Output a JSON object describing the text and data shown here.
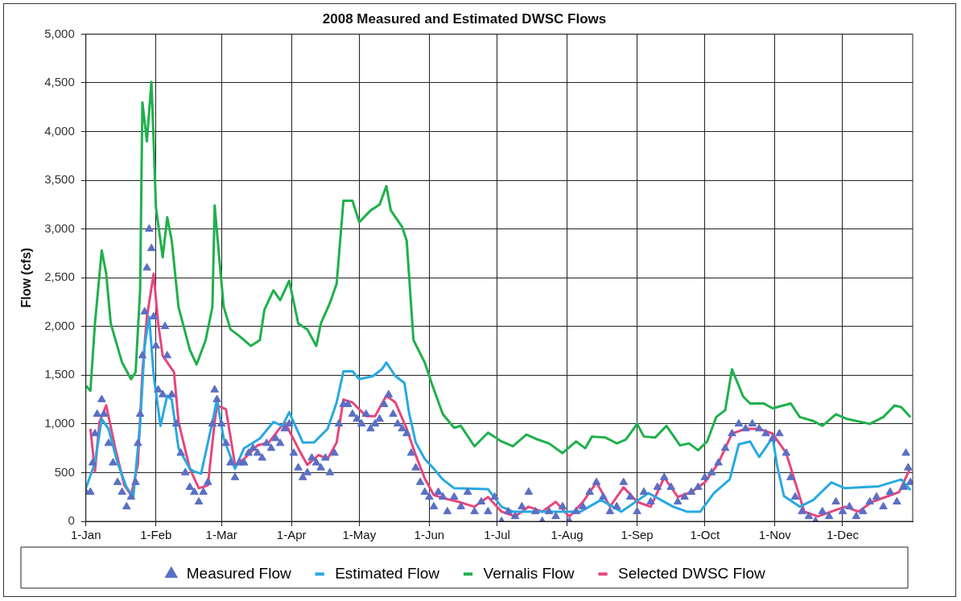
{
  "chart_data": {
    "type": "line",
    "title": "2008 Measured and Estimated DWSC Flows",
    "ylabel": "Flow (cfs)",
    "xlim": [
      "2008-01-01",
      "2009-01-01"
    ],
    "xticks": [
      {
        "value": "2008-01-01",
        "label": "1-Jan"
      },
      {
        "value": "2008-02-01",
        "label": "1-Feb"
      },
      {
        "value": "2008-03-01",
        "label": "1-Mar"
      },
      {
        "value": "2008-04-01",
        "label": "1-Apr"
      },
      {
        "value": "2008-05-01",
        "label": "1-May"
      },
      {
        "value": "2008-06-01",
        "label": "1-Jun"
      },
      {
        "value": "2008-07-01",
        "label": "1-Jul"
      },
      {
        "value": "2008-08-01",
        "label": "1-Aug"
      },
      {
        "value": "2008-09-01",
        "label": "1-Sep"
      },
      {
        "value": "2008-10-01",
        "label": "1-Oct"
      },
      {
        "value": "2008-11-01",
        "label": "1-Nov"
      },
      {
        "value": "2008-12-01",
        "label": "1-Dec"
      }
    ],
    "ylim": [
      0,
      5000
    ],
    "yticks": [
      0,
      500,
      {
        "value": 1000,
        "label": "1,000"
      },
      {
        "value": 1500,
        "label": "1,500"
      },
      {
        "value": 2000,
        "label": "2,000"
      },
      {
        "value": 2500,
        "label": "2,500"
      },
      {
        "value": 3000,
        "label": "3,000"
      },
      {
        "value": 3500,
        "label": "3,500"
      },
      {
        "value": 4000,
        "label": "4,000"
      },
      {
        "value": 4500,
        "label": "4,500"
      },
      {
        "value": 5000,
        "label": "5,000"
      }
    ],
    "grid": true,
    "legend": "bottom",
    "series": [
      {
        "name": "Measured Flow",
        "type": "scatter",
        "marker": "triangle",
        "color": "#5b6fc4",
        "x": [
          "2008-01-01",
          "2008-01-03",
          "2008-01-04",
          "2008-01-05",
          "2008-01-06",
          "2008-01-08",
          "2008-01-09",
          "2008-01-11",
          "2008-01-13",
          "2008-01-15",
          "2008-01-17",
          "2008-01-19",
          "2008-01-21",
          "2008-01-23",
          "2008-01-24",
          "2008-01-25",
          "2008-01-26",
          "2008-01-27",
          "2008-01-28",
          "2008-01-29",
          "2008-01-30",
          "2008-01-31",
          "2008-02-01",
          "2008-02-02",
          "2008-02-04",
          "2008-02-05",
          "2008-02-06",
          "2008-02-08",
          "2008-02-10",
          "2008-02-12",
          "2008-02-14",
          "2008-02-16",
          "2008-02-18",
          "2008-02-20",
          "2008-02-22",
          "2008-02-24",
          "2008-02-26",
          "2008-02-27",
          "2008-02-28",
          "2008-03-01",
          "2008-03-03",
          "2008-03-05",
          "2008-03-07",
          "2008-03-09",
          "2008-03-11",
          "2008-03-13",
          "2008-03-15",
          "2008-03-17",
          "2008-03-19",
          "2008-03-21",
          "2008-03-23",
          "2008-03-25",
          "2008-03-27",
          "2008-03-29",
          "2008-03-31",
          "2008-04-02",
          "2008-04-04",
          "2008-04-06",
          "2008-04-08",
          "2008-04-10",
          "2008-04-12",
          "2008-04-14",
          "2008-04-16",
          "2008-04-18",
          "2008-04-20",
          "2008-04-22",
          "2008-04-24",
          "2008-04-26",
          "2008-04-28",
          "2008-04-30",
          "2008-05-02",
          "2008-05-04",
          "2008-05-06",
          "2008-05-08",
          "2008-05-10",
          "2008-05-12",
          "2008-05-14",
          "2008-05-16",
          "2008-05-18",
          "2008-05-20",
          "2008-05-22",
          "2008-05-24",
          "2008-05-26",
          "2008-05-28",
          "2008-05-30",
          "2008-06-01",
          "2008-06-03",
          "2008-06-05",
          "2008-06-07",
          "2008-06-09",
          "2008-06-12",
          "2008-06-15",
          "2008-06-18",
          "2008-06-21",
          "2008-06-24",
          "2008-06-27",
          "2008-06-30",
          "2008-07-03",
          "2008-07-06",
          "2008-07-09",
          "2008-07-12",
          "2008-07-15",
          "2008-07-18",
          "2008-07-21",
          "2008-07-24",
          "2008-07-27",
          "2008-07-30",
          "2008-08-02",
          "2008-08-05",
          "2008-08-08",
          "2008-08-11",
          "2008-08-14",
          "2008-08-17",
          "2008-08-20",
          "2008-08-23",
          "2008-08-26",
          "2008-08-29",
          "2008-09-01",
          "2008-09-04",
          "2008-09-07",
          "2008-09-10",
          "2008-09-13",
          "2008-09-16",
          "2008-09-19",
          "2008-09-22",
          "2008-09-25",
          "2008-09-28",
          "2008-10-01",
          "2008-10-04",
          "2008-10-07",
          "2008-10-10",
          "2008-10-13",
          "2008-10-16",
          "2008-10-19",
          "2008-10-22",
          "2008-10-25",
          "2008-10-28",
          "2008-10-31",
          "2008-11-03",
          "2008-11-06",
          "2008-11-08",
          "2008-11-10",
          "2008-11-13",
          "2008-11-16",
          "2008-11-19",
          "2008-11-22",
          "2008-11-25",
          "2008-11-28",
          "2008-12-01",
          "2008-12-04",
          "2008-12-07",
          "2008-12-10",
          "2008-12-13",
          "2008-12-16",
          "2008-12-19",
          "2008-12-22",
          "2008-12-25",
          "2008-12-28",
          "2008-12-29",
          "2008-12-30",
          "2008-12-31"
        ],
        "values": [
          300,
          300,
          600,
          900,
          1100,
          1250,
          1100,
          800,
          600,
          400,
          300,
          150,
          250,
          400,
          800,
          1100,
          1700,
          2150,
          2600,
          3000,
          2800,
          2100,
          1800,
          1350,
          1300,
          2000,
          1700,
          1300,
          1000,
          700,
          500,
          350,
          300,
          200,
          300,
          400,
          1000,
          1350,
          1250,
          1000,
          800,
          600,
          450,
          600,
          600,
          700,
          750,
          700,
          650,
          800,
          750,
          850,
          800,
          950,
          1000,
          700,
          550,
          450,
          500,
          650,
          600,
          550,
          650,
          500,
          700,
          1000,
          1200,
          1200,
          1100,
          1050,
          1000,
          1100,
          950,
          1000,
          1050,
          1200,
          1300,
          1100,
          1000,
          950,
          900,
          700,
          550,
          400,
          300,
          250,
          150,
          300,
          250,
          100,
          250,
          150,
          300,
          100,
          200,
          100,
          250,
          0,
          100,
          50,
          150,
          300,
          100,
          0,
          100,
          50,
          150,
          0,
          100,
          150,
          300,
          400,
          250,
          100,
          150,
          400,
          250,
          100,
          300,
          200,
          350,
          450,
          350,
          200,
          250,
          300,
          350,
          450,
          500,
          600,
          750,
          900,
          1000,
          950,
          1000,
          950,
          900,
          850,
          900,
          700,
          450,
          250,
          100,
          50,
          0,
          100,
          50,
          200,
          100,
          150,
          50,
          100,
          200,
          250,
          150,
          300,
          200,
          350,
          700,
          550,
          400
        ]
      },
      {
        "name": "Estimated Flow",
        "color": "#27a9e1",
        "x": [
          "2008-01-01",
          "2008-01-05",
          "2008-01-08",
          "2008-01-11",
          "2008-01-15",
          "2008-01-19",
          "2008-01-22",
          "2008-01-25",
          "2008-01-27",
          "2008-01-29",
          "2008-01-31",
          "2008-02-03",
          "2008-02-06",
          "2008-02-08",
          "2008-02-11",
          "2008-02-16",
          "2008-02-18",
          "2008-02-21",
          "2008-02-26",
          "2008-02-28",
          "2008-03-02",
          "2008-03-07",
          "2008-03-11",
          "2008-03-18",
          "2008-03-24",
          "2008-03-28",
          "2008-03-31",
          "2008-04-06",
          "2008-04-11",
          "2008-04-17",
          "2008-04-21",
          "2008-04-24",
          "2008-04-28",
          "2008-05-01",
          "2008-05-07",
          "2008-05-11",
          "2008-05-13",
          "2008-05-17",
          "2008-05-21",
          "2008-05-23",
          "2008-05-26",
          "2008-05-30",
          "2008-06-03",
          "2008-06-07",
          "2008-06-12",
          "2008-06-27",
          "2008-07-03",
          "2008-07-08",
          "2008-07-23",
          "2008-08-07",
          "2008-08-16",
          "2008-08-25",
          "2008-09-06",
          "2008-09-17",
          "2008-09-23",
          "2008-09-29",
          "2008-10-05",
          "2008-10-12",
          "2008-10-16",
          "2008-10-21",
          "2008-10-25",
          "2008-10-31",
          "2008-11-02",
          "2008-11-05",
          "2008-11-12",
          "2008-11-18",
          "2008-11-26",
          "2008-12-02",
          "2008-12-17",
          "2008-12-27",
          "2008-12-31"
        ],
        "values": [
          340,
          600,
          1050,
          950,
          600,
          350,
          250,
          1000,
          1800,
          2100,
          1500,
          980,
          1290,
          1250,
          750,
          540,
          510,
          490,
          1020,
          1250,
          850,
          540,
          750,
          850,
          1020,
          980,
          1120,
          810,
          810,
          950,
          1220,
          1540,
          1540,
          1460,
          1490,
          1560,
          1630,
          1490,
          1420,
          1120,
          810,
          640,
          540,
          430,
          340,
          330,
          150,
          100,
          100,
          100,
          220,
          100,
          290,
          150,
          100,
          100,
          290,
          430,
          790,
          820,
          660,
          860,
          570,
          260,
          150,
          220,
          400,
          340,
          360,
          430,
          320
        ]
      },
      {
        "name": "Vernalis Flow",
        "color": "#1fb04c",
        "x": [
          "2008-01-01",
          "2008-01-03",
          "2008-01-05",
          "2008-01-08",
          "2008-01-10",
          "2008-01-12",
          "2008-01-17",
          "2008-01-21",
          "2008-01-23",
          "2008-01-25",
          "2008-01-26",
          "2008-01-28",
          "2008-01-30",
          "2008-01-31",
          "2008-02-01",
          "2008-02-04",
          "2008-02-06",
          "2008-02-08",
          "2008-02-11",
          "2008-02-16",
          "2008-02-19",
          "2008-02-23",
          "2008-02-26",
          "2008-02-27",
          "2008-02-29",
          "2008-03-02",
          "2008-03-05",
          "2008-03-09",
          "2008-03-14",
          "2008-03-18",
          "2008-03-20",
          "2008-03-24",
          "2008-03-27",
          "2008-03-31",
          "2008-04-04",
          "2008-04-08",
          "2008-04-12",
          "2008-04-14",
          "2008-04-18",
          "2008-04-21",
          "2008-04-24",
          "2008-04-28",
          "2008-05-01",
          "2008-05-06",
          "2008-05-10",
          "2008-05-13",
          "2008-05-15",
          "2008-05-20",
          "2008-05-22",
          "2008-05-25",
          "2008-05-30",
          "2008-06-02",
          "2008-06-07",
          "2008-06-12",
          "2008-06-15",
          "2008-06-21",
          "2008-06-27",
          "2008-07-03",
          "2008-07-08",
          "2008-07-14",
          "2008-07-19",
          "2008-07-24",
          "2008-07-30",
          "2008-08-05",
          "2008-08-09",
          "2008-08-12",
          "2008-08-18",
          "2008-08-23",
          "2008-08-27",
          "2008-09-01",
          "2008-09-04",
          "2008-09-09",
          "2008-09-14",
          "2008-09-20",
          "2008-09-24",
          "2008-09-28",
          "2008-10-02",
          "2008-10-06",
          "2008-10-10",
          "2008-10-13",
          "2008-10-18",
          "2008-10-21",
          "2008-10-27",
          "2008-10-31",
          "2008-11-08",
          "2008-11-12",
          "2008-11-18",
          "2008-11-22",
          "2008-11-28",
          "2008-12-03",
          "2008-12-13",
          "2008-12-19",
          "2008-12-24",
          "2008-12-27",
          "2008-12-31"
        ],
        "values": [
          1390,
          1340,
          2030,
          2780,
          2540,
          2030,
          1630,
          1460,
          1530,
          2370,
          4300,
          3900,
          4510,
          3900,
          3220,
          2710,
          3120,
          2880,
          2200,
          1760,
          1610,
          1860,
          2200,
          3240,
          2710,
          2200,
          1970,
          1900,
          1800,
          1860,
          2170,
          2370,
          2270,
          2470,
          2030,
          1970,
          1800,
          2030,
          2240,
          2440,
          3290,
          3290,
          3070,
          3190,
          3250,
          3440,
          3190,
          3020,
          2880,
          1860,
          1630,
          1420,
          1100,
          960,
          980,
          770,
          910,
          820,
          770,
          890,
          840,
          800,
          700,
          820,
          750,
          870,
          860,
          800,
          840,
          1000,
          870,
          860,
          980,
          780,
          800,
          730,
          820,
          1070,
          1140,
          1560,
          1280,
          1210,
          1210,
          1160,
          1210,
          1070,
          1030,
          980,
          1100,
          1050,
          1000,
          1070,
          1190,
          1170,
          1070
        ]
      },
      {
        "name": "Selected DWSC Flow",
        "color": "#e8457c",
        "x": [
          "2008-01-03",
          "2008-01-05",
          "2008-01-07",
          "2008-01-10",
          "2008-01-14",
          "2008-01-18",
          "2008-01-21",
          "2008-01-24",
          "2008-01-26",
          "2008-01-28",
          "2008-01-31",
          "2008-02-02",
          "2008-02-04",
          "2008-02-09",
          "2008-02-11",
          "2008-02-16",
          "2008-02-20",
          "2008-02-24",
          "2008-02-27",
          "2008-02-28",
          "2008-03-03",
          "2008-03-07",
          "2008-03-11",
          "2008-03-17",
          "2008-03-22",
          "2008-03-29",
          "2008-04-04",
          "2008-04-08",
          "2008-04-13",
          "2008-04-17",
          "2008-04-21",
          "2008-04-24",
          "2008-04-28",
          "2008-05-04",
          "2008-05-08",
          "2008-05-13",
          "2008-05-17",
          "2008-05-22",
          "2008-05-26",
          "2008-05-30",
          "2008-06-03",
          "2008-06-07",
          "2008-06-14",
          "2008-06-21",
          "2008-06-27",
          "2008-07-03",
          "2008-07-09",
          "2008-07-15",
          "2008-07-21",
          "2008-07-27",
          "2008-08-02",
          "2008-08-08",
          "2008-08-14",
          "2008-08-20",
          "2008-08-26",
          "2008-09-01",
          "2008-09-07",
          "2008-09-13",
          "2008-09-19",
          "2008-09-25",
          "2008-10-01",
          "2008-10-07",
          "2008-10-13",
          "2008-10-19",
          "2008-10-25",
          "2008-10-31",
          "2008-11-06",
          "2008-11-10",
          "2008-11-14",
          "2008-11-20",
          "2008-11-26",
          "2008-12-02",
          "2008-12-08",
          "2008-12-14",
          "2008-12-20",
          "2008-12-26",
          "2008-12-29",
          "2008-12-31"
        ],
        "values": [
          950,
          510,
          1020,
          1190,
          750,
          370,
          270,
          580,
          1530,
          2100,
          2540,
          2030,
          1700,
          1530,
          1020,
          540,
          340,
          370,
          1020,
          1190,
          1150,
          580,
          640,
          780,
          810,
          1020,
          750,
          580,
          680,
          640,
          810,
          1250,
          1220,
          1080,
          1080,
          1290,
          1220,
          950,
          680,
          440,
          270,
          240,
          200,
          150,
          250,
          100,
          50,
          150,
          100,
          200,
          50,
          200,
          400,
          150,
          350,
          200,
          150,
          450,
          250,
          300,
          400,
          600,
          900,
          950,
          950,
          900,
          700,
          400,
          100,
          50,
          100,
          150,
          100,
          200,
          250,
          300,
          450,
          550
        ]
      }
    ]
  }
}
